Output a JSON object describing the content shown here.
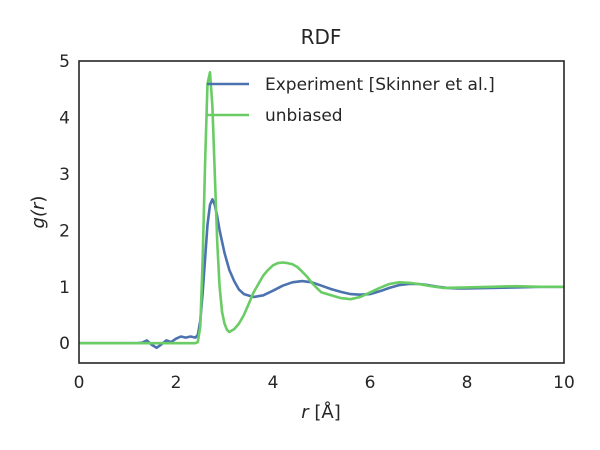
{
  "chart_data": {
    "type": "line",
    "title": "RDF",
    "xlabel": {
      "var": "r",
      "unit": " [Å]"
    },
    "ylabel": {
      "prefix": "g(",
      "var": "r",
      "suffix": ")"
    },
    "xlim": [
      0,
      10
    ],
    "ylim": [
      -0.35,
      5
    ],
    "xticks": [
      "0",
      "2",
      "4",
      "6",
      "8",
      "10"
    ],
    "yticks": [
      "0",
      "1",
      "2",
      "3",
      "4",
      "5"
    ],
    "grid": false,
    "legend_position": "top-right",
    "series": [
      {
        "name": "Experiment [Skinner et al.]",
        "color": "#4c72b0",
        "x": [
          0,
          1.2,
          1.3,
          1.4,
          1.5,
          1.6,
          1.7,
          1.8,
          1.9,
          2.0,
          2.1,
          2.2,
          2.3,
          2.4,
          2.45,
          2.5,
          2.55,
          2.6,
          2.65,
          2.7,
          2.75,
          2.8,
          2.85,
          2.9,
          3.0,
          3.1,
          3.2,
          3.3,
          3.4,
          3.6,
          3.8,
          4.0,
          4.2,
          4.4,
          4.6,
          4.8,
          5.0,
          5.2,
          5.4,
          5.6,
          5.8,
          6.0,
          6.2,
          6.4,
          6.6,
          6.8,
          7.0,
          7.2,
          7.4,
          7.6,
          7.8,
          8.0,
          8.5,
          9.0,
          9.5,
          10.0
        ],
        "y": [
          0.0,
          0.0,
          0.01,
          0.05,
          -0.03,
          -0.08,
          -0.02,
          0.05,
          0.02,
          0.08,
          0.12,
          0.1,
          0.12,
          0.1,
          0.15,
          0.4,
          0.9,
          1.5,
          2.1,
          2.45,
          2.55,
          2.45,
          2.25,
          2.0,
          1.6,
          1.3,
          1.1,
          0.95,
          0.87,
          0.82,
          0.85,
          0.93,
          1.02,
          1.08,
          1.1,
          1.08,
          1.02,
          0.96,
          0.91,
          0.87,
          0.86,
          0.87,
          0.92,
          0.98,
          1.03,
          1.05,
          1.05,
          1.03,
          1.0,
          0.98,
          0.97,
          0.97,
          0.98,
          0.99,
          1.0,
          1.0
        ]
      },
      {
        "name": "unbiased",
        "color": "#6acc65",
        "x": [
          0,
          2.3,
          2.4,
          2.45,
          2.5,
          2.55,
          2.6,
          2.65,
          2.7,
          2.75,
          2.8,
          2.85,
          2.9,
          2.95,
          3.0,
          3.05,
          3.1,
          3.2,
          3.3,
          3.4,
          3.5,
          3.6,
          3.7,
          3.8,
          3.9,
          4.0,
          4.1,
          4.2,
          4.3,
          4.4,
          4.5,
          4.6,
          4.7,
          4.8,
          4.9,
          5.0,
          5.2,
          5.4,
          5.6,
          5.8,
          6.0,
          6.2,
          6.4,
          6.6,
          6.8,
          7.0,
          7.2,
          7.5,
          8.0,
          8.5,
          9.0,
          9.5,
          10.0
        ],
        "y": [
          0.0,
          0.0,
          0.0,
          0.02,
          0.3,
          1.5,
          3.2,
          4.6,
          4.8,
          4.2,
          3.0,
          1.8,
          1.0,
          0.55,
          0.35,
          0.24,
          0.2,
          0.25,
          0.35,
          0.5,
          0.7,
          0.9,
          1.05,
          1.2,
          1.3,
          1.38,
          1.42,
          1.43,
          1.42,
          1.4,
          1.35,
          1.27,
          1.18,
          1.07,
          0.98,
          0.9,
          0.85,
          0.8,
          0.78,
          0.82,
          0.9,
          0.98,
          1.05,
          1.08,
          1.07,
          1.05,
          1.02,
          0.98,
          0.99,
          1.0,
          1.01,
          1.0,
          1.0
        ]
      }
    ]
  }
}
